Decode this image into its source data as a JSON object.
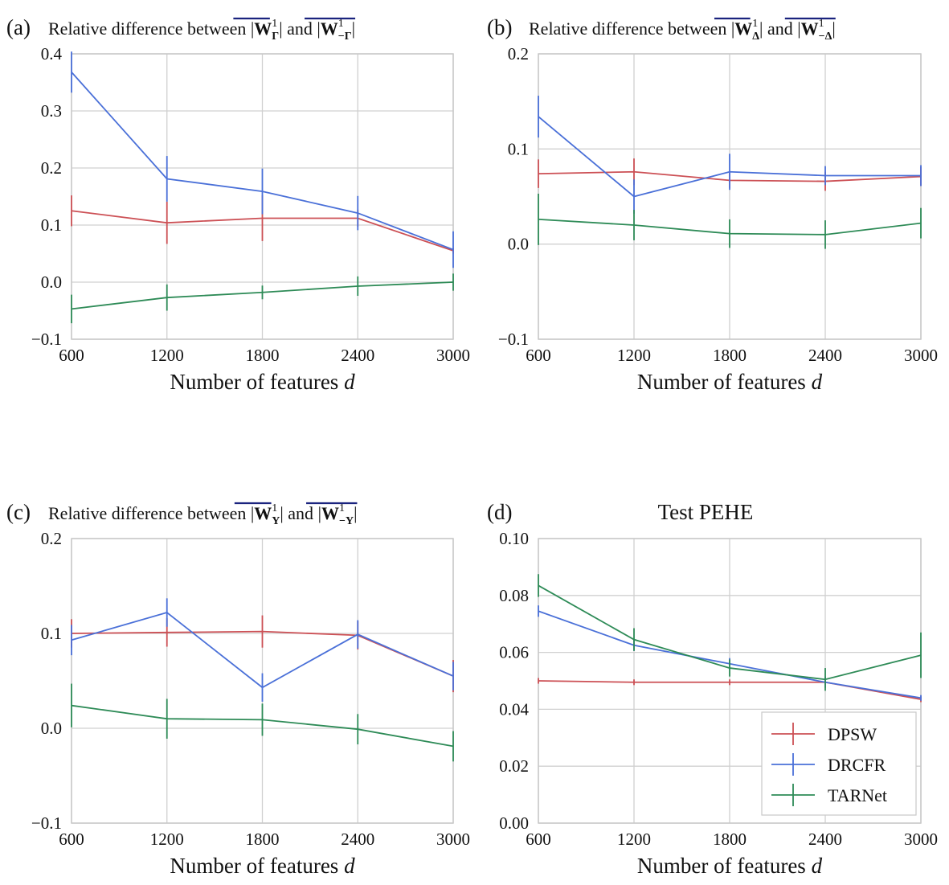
{
  "series_styles": [
    {
      "name": "DPSW",
      "color": "#cc5055"
    },
    {
      "name": "DRCFR",
      "color": "#4a70d8"
    },
    {
      "name": "TARNet",
      "color": "#2e8b57"
    }
  ],
  "chart_data": [
    {
      "type": "line",
      "tag": "(a)",
      "title_parts": [
        "Relative difference between",
        "and"
      ],
      "title_math_1": {
        "base": "W",
        "sup": "1",
        "sub": "Γ"
      },
      "title_math_2": {
        "base": "W",
        "sup": "1",
        "sub": "−Γ"
      },
      "title": "",
      "xlabel": "Number of features",
      "xlabel_var": "d",
      "x": [
        600,
        1200,
        1800,
        2400,
        3000
      ],
      "x_ticks": [
        "600",
        "1200",
        "1800",
        "2400",
        "3000"
      ],
      "ylim": [
        -0.1,
        0.4
      ],
      "y_ticks": [
        -0.1,
        0.0,
        0.1,
        0.2,
        0.3,
        0.4
      ],
      "y_tick_labels": [
        "−0.1",
        "0.0",
        "0.1",
        "0.2",
        "0.3",
        "0.4"
      ],
      "series": [
        {
          "name": "DPSW",
          "values": [
            0.125,
            0.104,
            0.112,
            0.112,
            0.055
          ],
          "err": [
            0.027,
            0.037,
            0.04,
            0.015,
            0.005
          ]
        },
        {
          "name": "DRCFR",
          "values": [
            0.368,
            0.181,
            0.159,
            0.121,
            0.057
          ],
          "err": [
            0.036,
            0.04,
            0.04,
            0.03,
            0.032
          ]
        },
        {
          "name": "TARNet",
          "values": [
            -0.047,
            -0.027,
            -0.018,
            -0.007,
            0.0
          ],
          "err": [
            0.025,
            0.023,
            0.012,
            0.017,
            0.015
          ]
        }
      ],
      "legend": false,
      "grid": true
    },
    {
      "type": "line",
      "tag": "(b)",
      "title_parts": [
        "Relative difference between",
        "and"
      ],
      "title_math_1": {
        "base": "W",
        "sup": "1",
        "sub": "Δ"
      },
      "title_math_2": {
        "base": "W",
        "sup": "1",
        "sub": "−Δ"
      },
      "title": "",
      "xlabel": "Number of features",
      "xlabel_var": "d",
      "x": [
        600,
        1200,
        1800,
        2400,
        3000
      ],
      "x_ticks": [
        "600",
        "1200",
        "1800",
        "2400",
        "3000"
      ],
      "ylim": [
        -0.1,
        0.2
      ],
      "y_ticks": [
        -0.1,
        0.0,
        0.1,
        0.2
      ],
      "y_tick_labels": [
        "−0.1",
        "0.0",
        "0.1",
        "0.2"
      ],
      "series": [
        {
          "name": "DPSW",
          "values": [
            0.074,
            0.076,
            0.067,
            0.066,
            0.071
          ],
          "err": [
            0.015,
            0.014,
            0.008,
            0.01,
            0.01
          ]
        },
        {
          "name": "DRCFR",
          "values": [
            0.134,
            0.05,
            0.076,
            0.072,
            0.072
          ],
          "err": [
            0.022,
            0.018,
            0.019,
            0.01,
            0.011
          ]
        },
        {
          "name": "TARNet",
          "values": [
            0.026,
            0.02,
            0.011,
            0.01,
            0.022
          ],
          "err": [
            0.027,
            0.016,
            0.015,
            0.015,
            0.016
          ]
        }
      ],
      "legend": false,
      "grid": true
    },
    {
      "type": "line",
      "tag": "(c)",
      "title_parts": [
        "Relative difference between",
        "and"
      ],
      "title_math_1": {
        "base": "W",
        "sup": "1",
        "sub": "Υ"
      },
      "title_math_2": {
        "base": "W",
        "sup": "1",
        "sub": "−Υ"
      },
      "title": "",
      "xlabel": "Number of features",
      "xlabel_var": "d",
      "x": [
        600,
        1200,
        1800,
        2400,
        3000
      ],
      "x_ticks": [
        "600",
        "1200",
        "1800",
        "2400",
        "3000"
      ],
      "ylim": [
        -0.1,
        0.2
      ],
      "y_ticks": [
        -0.1,
        0.0,
        0.1,
        0.2
      ],
      "y_tick_labels": [
        "−0.1",
        "0.0",
        "0.1",
        "0.2"
      ],
      "series": [
        {
          "name": "DPSW",
          "values": [
            0.1,
            0.101,
            0.102,
            0.098,
            0.055
          ],
          "err": [
            0.015,
            0.015,
            0.017,
            0.015,
            0.017
          ]
        },
        {
          "name": "DRCFR",
          "values": [
            0.093,
            0.122,
            0.043,
            0.099,
            0.055
          ],
          "err": [
            0.016,
            0.015,
            0.015,
            0.015,
            0.015
          ]
        },
        {
          "name": "TARNet",
          "values": [
            0.024,
            0.01,
            0.009,
            -0.001,
            -0.019
          ],
          "err": [
            0.023,
            0.021,
            0.017,
            0.016,
            0.016
          ]
        }
      ],
      "legend": false,
      "grid": true
    },
    {
      "type": "line",
      "tag": "(d)",
      "title": "Test PEHE",
      "xlabel": "Number of features",
      "xlabel_var": "d",
      "x": [
        600,
        1200,
        1800,
        2400,
        3000
      ],
      "x_ticks": [
        "600",
        "1200",
        "1800",
        "2400",
        "3000"
      ],
      "ylim": [
        0.0,
        0.1
      ],
      "y_ticks": [
        0.0,
        0.02,
        0.04,
        0.06,
        0.08,
        0.1
      ],
      "y_tick_labels": [
        "0.00",
        "0.02",
        "0.04",
        "0.06",
        "0.08",
        "0.10"
      ],
      "series": [
        {
          "name": "DPSW",
          "values": [
            0.05,
            0.0495,
            0.0495,
            0.0495,
            0.0435
          ],
          "err": [
            0.001,
            0.001,
            0.001,
            0.001,
            0.001
          ]
        },
        {
          "name": "DRCFR",
          "values": [
            0.0745,
            0.0625,
            0.056,
            0.0495,
            0.044
          ],
          "err": [
            0.002,
            0.002,
            0.002,
            0.002,
            0.001
          ]
        },
        {
          "name": "TARNet",
          "values": [
            0.0835,
            0.0645,
            0.0545,
            0.0505,
            0.059
          ],
          "err": [
            0.004,
            0.004,
            0.003,
            0.004,
            0.008
          ]
        }
      ],
      "legend": true,
      "legend_position": "lower-right",
      "legend_entries": [
        "DPSW",
        "DRCFR",
        "TARNet"
      ],
      "grid": true
    }
  ]
}
